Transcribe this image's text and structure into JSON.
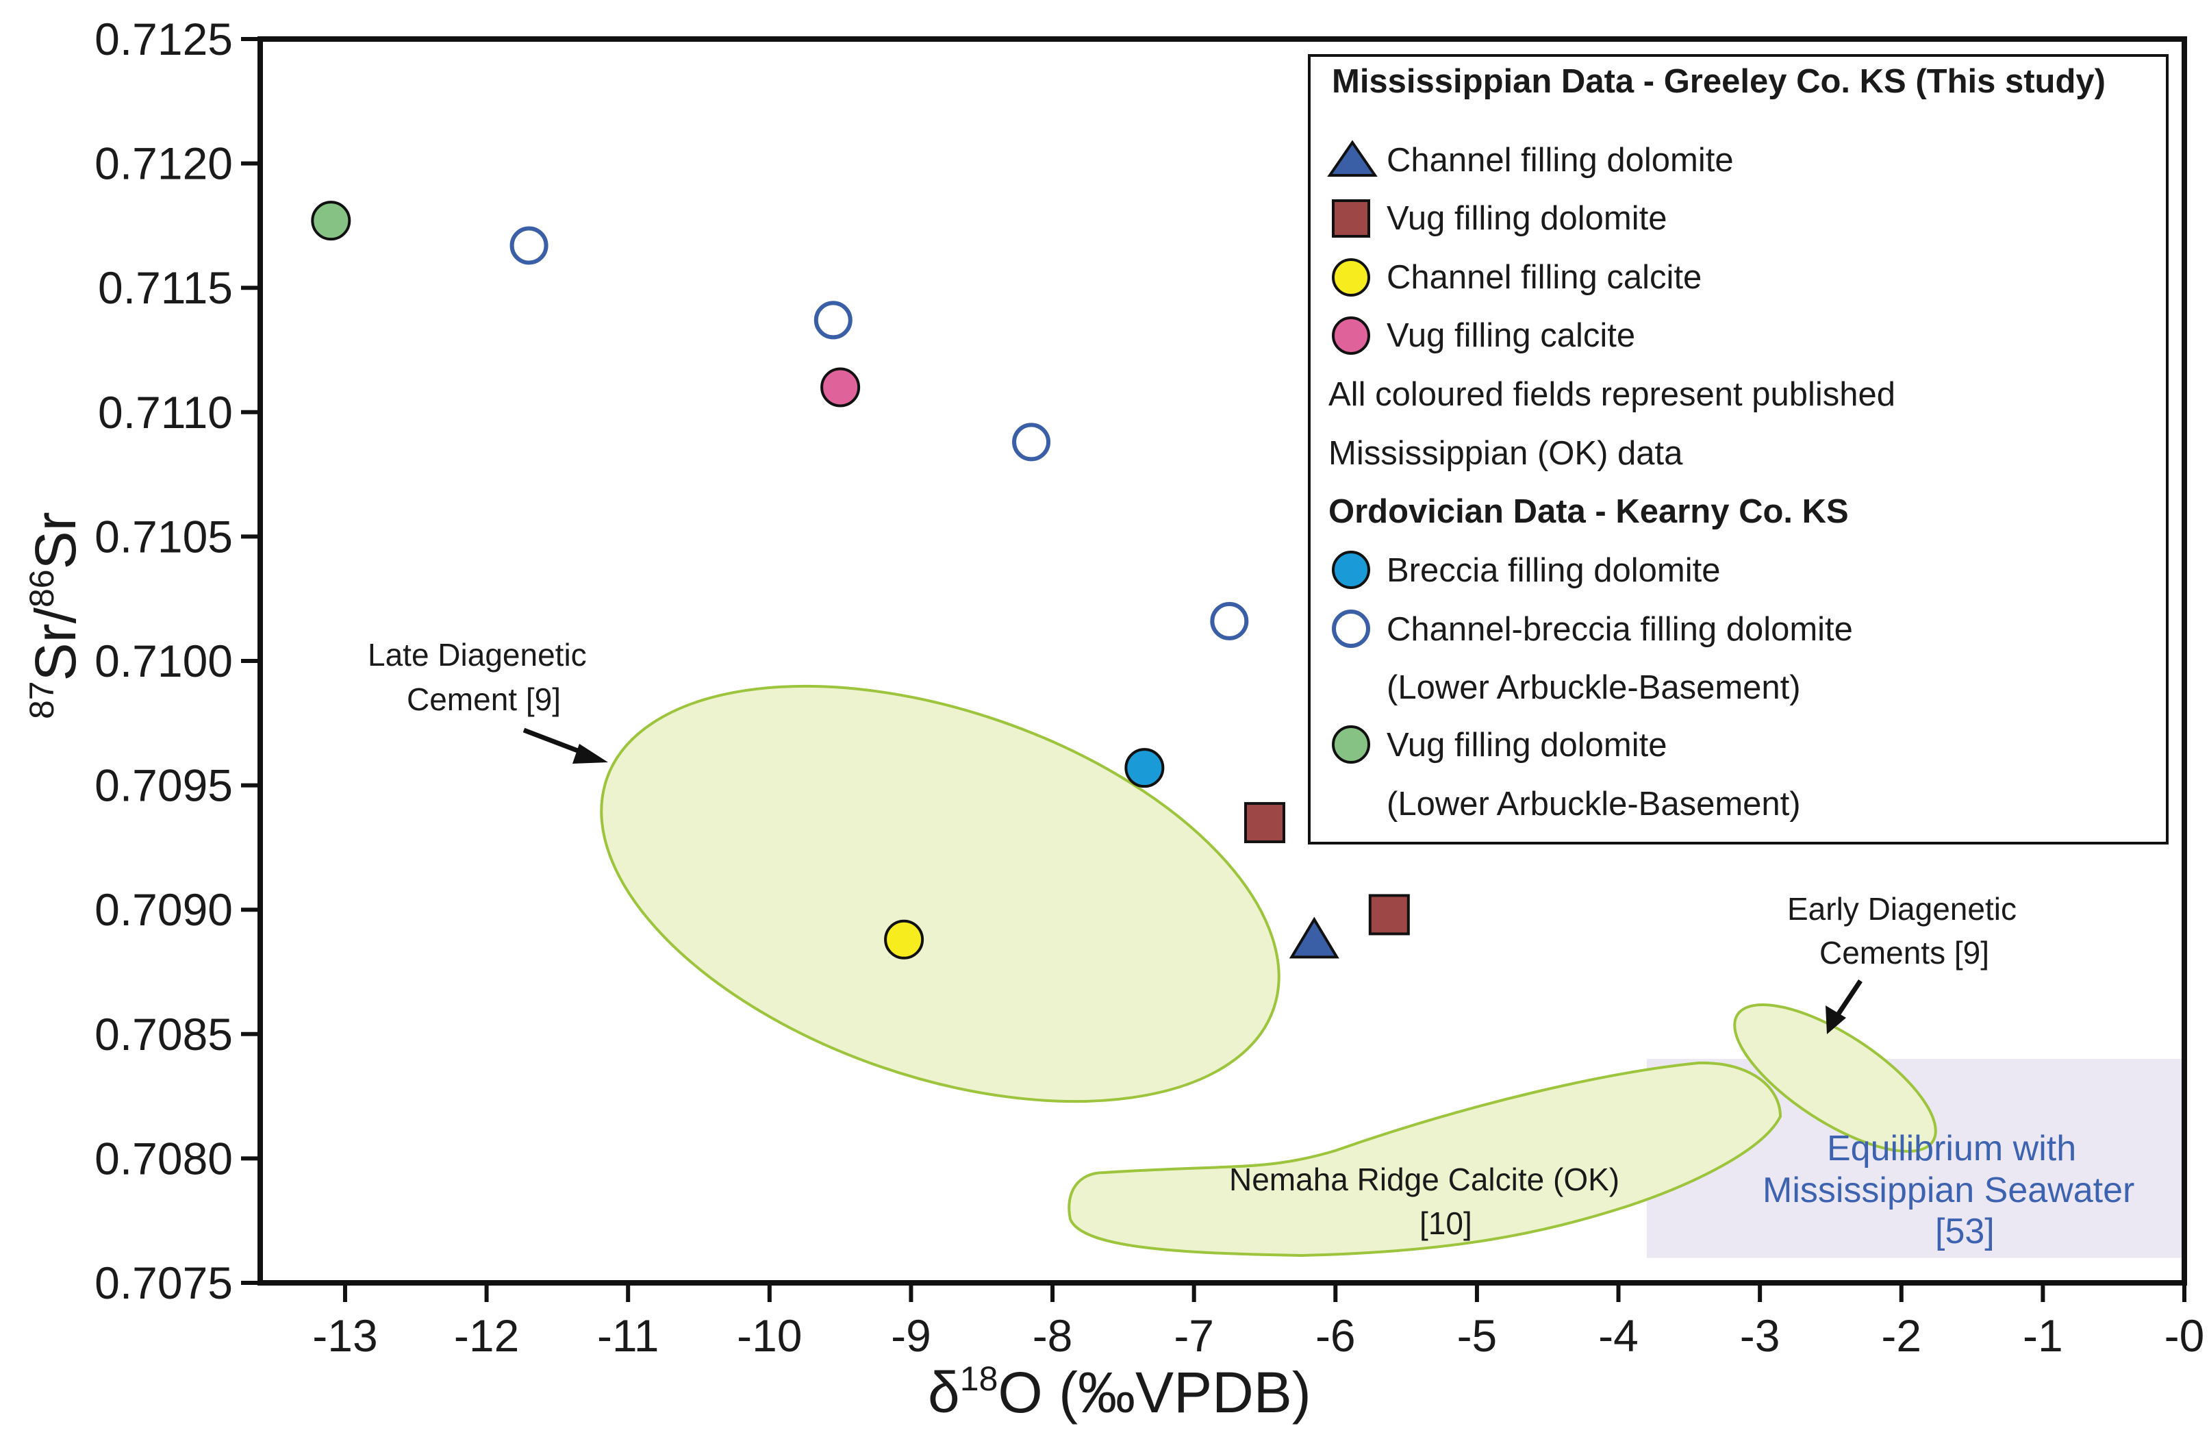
{
  "chart_data": {
    "type": "scatter",
    "xlabel_prefix": "δ",
    "xlabel_sup": "18",
    "xlabel_main": "O (‰VPDB)",
    "ylabel_sup1": "87",
    "ylabel_mid": "Sr/",
    "ylabel_sup2": "86",
    "ylabel_end": "Sr",
    "xlim": [
      -13.6,
      0
    ],
    "ylim": [
      0.7075,
      0.7125
    ],
    "x_ticks": [
      {
        "value": -13,
        "label": "-13"
      },
      {
        "value": -12,
        "label": "-12"
      },
      {
        "value": -11,
        "label": "-11"
      },
      {
        "value": -10,
        "label": "-10"
      },
      {
        "value": -9,
        "label": "-9"
      },
      {
        "value": -8,
        "label": "-8"
      },
      {
        "value": -7,
        "label": "-7"
      },
      {
        "value": -6,
        "label": "-6"
      },
      {
        "value": -5,
        "label": "-5"
      },
      {
        "value": -4,
        "label": "-4"
      },
      {
        "value": -3,
        "label": "-3"
      },
      {
        "value": -2,
        "label": "-2"
      },
      {
        "value": -1,
        "label": "-1"
      },
      {
        "value": 0,
        "label": "-0"
      }
    ],
    "y_ticks": [
      {
        "value": 0.7075,
        "label": "0.7075"
      },
      {
        "value": 0.708,
        "label": "0.7080"
      },
      {
        "value": 0.7085,
        "label": "0.7085"
      },
      {
        "value": 0.709,
        "label": "0.7090"
      },
      {
        "value": 0.7095,
        "label": "0.7095"
      },
      {
        "value": 0.71,
        "label": "0.7100"
      },
      {
        "value": 0.7105,
        "label": "0.7105"
      },
      {
        "value": 0.711,
        "label": "0.7110"
      },
      {
        "value": 0.7115,
        "label": "0.7115"
      },
      {
        "value": 0.712,
        "label": "0.7120"
      },
      {
        "value": 0.7125,
        "label": "0.7125"
      }
    ],
    "series": [
      {
        "name": "Channel filling dolomite",
        "marker": "triangle",
        "fill": "#3a5fa6",
        "points": [
          {
            "x": -6.15,
            "y": 0.70887
          }
        ]
      },
      {
        "name": "Vug filling dolomite (Mississippian)",
        "marker": "square",
        "fill": "#9e4747",
        "points": [
          {
            "x": -6.5,
            "y": 0.70935
          },
          {
            "x": -5.62,
            "y": 0.70898
          }
        ]
      },
      {
        "name": "Channel filling calcite",
        "marker": "circle",
        "fill": "#f6ec1e",
        "points": [
          {
            "x": -9.05,
            "y": 0.70888
          }
        ]
      },
      {
        "name": "Vug filling calcite",
        "marker": "circle",
        "fill": "#e0629a",
        "points": [
          {
            "x": -9.5,
            "y": 0.7111
          }
        ]
      },
      {
        "name": "Breccia filling dolomite",
        "marker": "circle",
        "fill": "#1a9ad6",
        "points": [
          {
            "x": -7.35,
            "y": 0.70957
          }
        ]
      },
      {
        "name": "Channel-breccia filling dolomite",
        "marker": "circle-open",
        "fill": "#ffffff",
        "points": [
          {
            "x": -11.7,
            "y": 0.71167
          },
          {
            "x": -9.55,
            "y": 0.71137
          },
          {
            "x": -8.15,
            "y": 0.71088
          },
          {
            "x": -6.75,
            "y": 0.71016
          }
        ]
      },
      {
        "name": "Vug filling dolomite (Ordovician)",
        "marker": "circle",
        "fill": "#86c283",
        "points": [
          {
            "x": -13.1,
            "y": 0.71177
          }
        ]
      }
    ],
    "fields": [
      {
        "name": "Late Diagenetic Cement",
        "ref": "[9]"
      },
      {
        "name": "Early Diagenetic Cements",
        "ref": "[9]"
      },
      {
        "name": "Nemaha Ridge Calcite (OK)",
        "ref": "[10]"
      },
      {
        "name": "Equilibrium with Mississippian Seawater",
        "ref": "[53]",
        "x_range": [
          -3.8,
          0
        ],
        "y_range": [
          0.7076,
          0.7084
        ]
      }
    ],
    "annotations": {
      "late_1": "Late Diagenetic",
      "late_2": "Cement [9]",
      "early_1": "Early Diagenetic",
      "early_2": "Cements [9]",
      "nemaha_1": "Nemaha Ridge Calcite (OK)",
      "nemaha_2": "[10]",
      "eq_1": "Equilibrium with",
      "eq_2": "Mississippian Seawater",
      "eq_3": "[53]"
    },
    "legend": {
      "position": "top-right",
      "heading1": "Mississippian Data - Greeley Co. KS (This study)",
      "item1": "Channel filling dolomite",
      "item2": "Vug filling dolomite",
      "item3": "Channel filling calcite",
      "item4": "Vug filling calcite",
      "note1": "All coloured fields represent published",
      "note2": "Mississippian (OK) data",
      "heading2": "Ordovician Data - Kearny Co. KS",
      "item5": "Breccia filling dolomite",
      "item6": "Channel-breccia filling dolomite",
      "item6b": "(Lower Arbuckle-Basement)",
      "item7": "Vug filling dolomite",
      "item7b": "(Lower Arbuckle-Basement)"
    },
    "colors": {
      "field_fill": "#eef3cf",
      "field_stroke": "#9cc43c",
      "seawater_fill": "#ebe8f4",
      "open_marker_stroke": "#3a5fa6"
    }
  }
}
